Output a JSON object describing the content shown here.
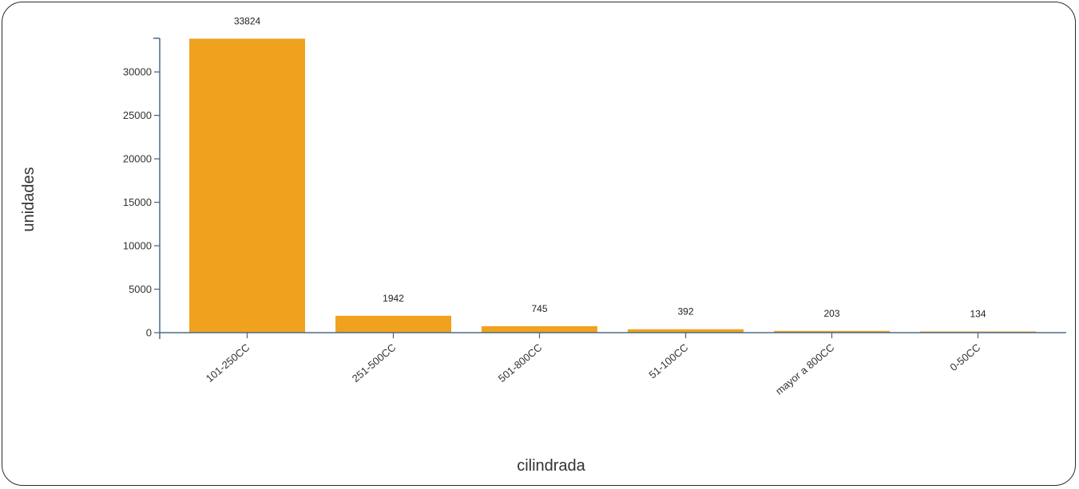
{
  "chart_data": {
    "type": "bar",
    "title": "",
    "xlabel": "cilindrada",
    "ylabel": "unidades",
    "categories": [
      "101-250CC",
      "251-500CC",
      "501-800CC",
      "51-100CC",
      "mayor a 800CC",
      "0-50CC"
    ],
    "values": [
      33824,
      1942,
      745,
      392,
      203,
      134
    ],
    "data_labels": [
      "33824",
      "1942",
      "745",
      "392",
      "203",
      "134"
    ],
    "y_ticks": [
      0,
      5000,
      10000,
      15000,
      20000,
      25000,
      30000
    ],
    "ylim": [
      0,
      34000
    ],
    "grid": false,
    "legend": "none",
    "bar_color": "#f0a21e",
    "axis_color": "#4a6b8a"
  }
}
